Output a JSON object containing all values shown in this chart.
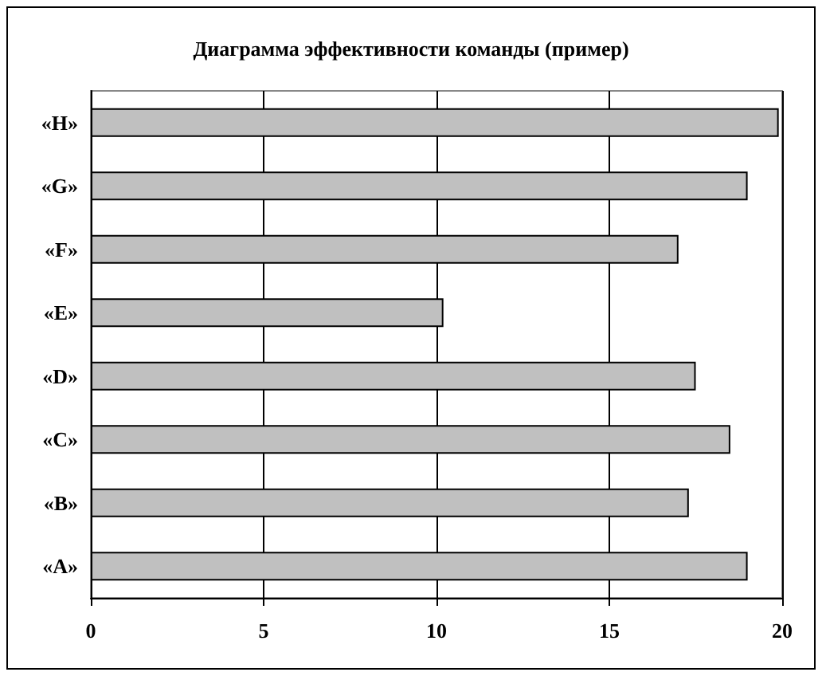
{
  "chart_data": {
    "type": "bar",
    "orientation": "horizontal",
    "title": "Диаграмма эффективности команды (пример)",
    "categories": [
      "«H»",
      "«G»",
      "«F»",
      "«E»",
      "«D»",
      "«C»",
      "«B»",
      "«A»"
    ],
    "values": [
      19.9,
      19,
      17,
      10.2,
      17.5,
      18.5,
      17.3,
      19
    ],
    "color": "#c0c0c0",
    "xlim": [
      0,
      20
    ],
    "xticks": [
      0,
      5,
      10,
      15,
      20
    ],
    "grid": "x"
  }
}
